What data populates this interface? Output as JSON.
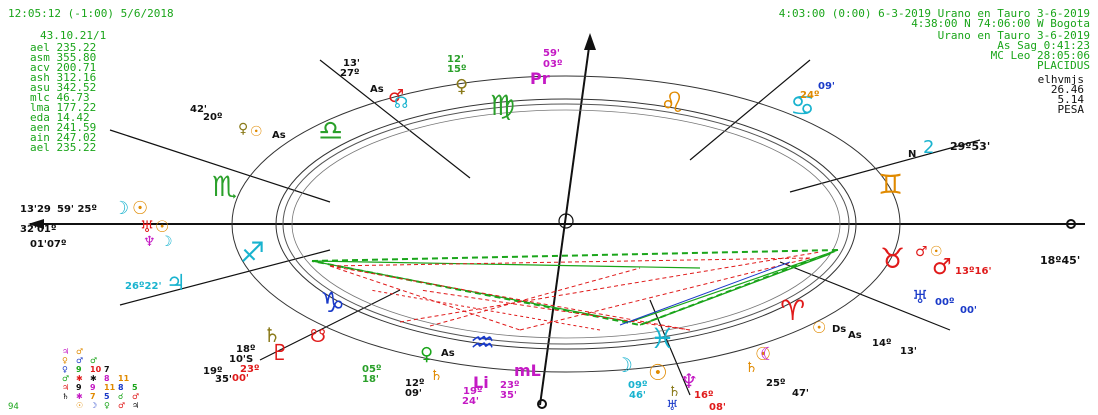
{
  "header": {
    "left_datetime": "12:05:12 (-1:00) 5/6/2018",
    "right_line1": "4:03:00 (0:00) 6-3-2019  Urano en Tauro 3-6-2019",
    "right_line2": "4:38:00 N  74:06:00 W  Bogota",
    "right_line3": "Urano en Tauro 3-6-2019",
    "right_line4": "As Sag  0:41:23",
    "right_line5": "MC Leo  28:05:06",
    "right_line6": "PLACIDUS",
    "right_line7": "elhvmjs",
    "right_line8": "26.46",
    "right_line9": "5.14",
    "right_line10": "PESA"
  },
  "left_panel": {
    "title": "43.10.21/1",
    "rows": [
      "ael  235.22",
      "asm  355.80",
      "acv  200.71",
      "ash  312.16",
      "asu  342.52",
      "mlc   46.73",
      "lma  177.22",
      "eda   14.42",
      "aen  241.59",
      "ain  247.02",
      "ael  235.22"
    ]
  },
  "footer": {
    "corner_number": "94"
  },
  "colors": {
    "green": "#1aa51a",
    "red": "#e01a1a",
    "blue": "#1a3ac8",
    "magenta": "#c41ac4",
    "orange": "#e08a00",
    "cyan": "#19b3cf",
    "navy": "#1a1a7a",
    "olive": "#8a7a1a"
  },
  "zodiac": [
    {
      "name": "Virgo",
      "glyph": "♍",
      "color": "#2aa02a"
    },
    {
      "name": "Leo",
      "glyph": "♌",
      "color": "#e08a00"
    },
    {
      "name": "Cancer",
      "glyph": "♋",
      "color": "#19b3cf"
    },
    {
      "name": "Gemini",
      "glyph": "♊",
      "color": "#e08a00"
    },
    {
      "name": "Taurus",
      "glyph": "♉",
      "color": "#e01a1a"
    },
    {
      "name": "Aries",
      "glyph": "♈",
      "color": "#e01a1a"
    },
    {
      "name": "Pisces",
      "glyph": "♓",
      "color": "#19b3cf"
    },
    {
      "name": "Aquarius",
      "glyph": "♒",
      "color": "#1a3ac8"
    },
    {
      "name": "Capricorn",
      "glyph": "♑",
      "color": "#1a3ac8"
    },
    {
      "name": "Sagittarius",
      "glyph": "♐",
      "color": "#19b3cf"
    },
    {
      "name": "Scorpio",
      "glyph": "♏",
      "color": "#2aa02a"
    },
    {
      "name": "Libra",
      "glyph": "♎",
      "color": "#2aa02a"
    }
  ],
  "planet_labels": [
    {
      "name": "pluto-top",
      "text": "Pr",
      "color": "#c41ac4"
    },
    {
      "name": "deg-top-1",
      "text": "59'",
      "color": "#c41ac4"
    },
    {
      "name": "deg-top-2",
      "text": "03º",
      "color": "#c41ac4"
    },
    {
      "name": "deg-top-3",
      "text": "12'",
      "color": "#2aa02a"
    },
    {
      "name": "deg-top-4",
      "text": "15º",
      "color": "#2aa02a"
    },
    {
      "name": "deg-tl-1",
      "text": "13'",
      "color": "#111111"
    },
    {
      "name": "deg-tl-2",
      "text": "27º",
      "color": "#111111"
    },
    {
      "name": "as-top",
      "text": "As",
      "color": "#111111"
    },
    {
      "name": "deg-left-1",
      "text": "42'",
      "color": "#111111"
    },
    {
      "name": "deg-left-2",
      "text": "20º",
      "color": "#111111"
    },
    {
      "name": "as-left",
      "text": "As",
      "color": "#111111"
    },
    {
      "name": "deg-w1",
      "text": "13'29",
      "color": "#111111"
    },
    {
      "name": "deg-w2",
      "text": "59' 25º",
      "color": "#111111"
    },
    {
      "name": "deg-w3",
      "text": "32'01º",
      "color": "#111111"
    },
    {
      "name": "deg-w4",
      "text": "01'07º",
      "color": "#111111"
    },
    {
      "name": "deg-jup",
      "text": "26º22'",
      "color": "#19b3cf"
    },
    {
      "name": "deg-tr1",
      "text": "09'",
      "color": "#1a3ac8"
    },
    {
      "name": "deg-tr2",
      "text": "24º",
      "color": "#e08a00"
    },
    {
      "name": "node-label",
      "text": "N",
      "color": "#111111"
    },
    {
      "name": "deg-tr3",
      "text": "29º53'",
      "color": "#111111"
    },
    {
      "name": "deg-r1",
      "text": "18º45'",
      "color": "#111111"
    },
    {
      "name": "deg-r2",
      "text": "13º16'",
      "color": "#e01a1a"
    },
    {
      "name": "deg-r3",
      "text": "00º",
      "color": "#1a3ac8"
    },
    {
      "name": "deg-r4",
      "text": "00'",
      "color": "#1a3ac8"
    },
    {
      "name": "ds-label",
      "text": "Ds",
      "color": "#111111"
    },
    {
      "name": "as-right",
      "text": "As",
      "color": "#111111"
    },
    {
      "name": "deg-r5",
      "text": "14º",
      "color": "#111111"
    },
    {
      "name": "deg-r6",
      "text": "13'",
      "color": "#111111"
    },
    {
      "name": "deg-b1",
      "text": "25º",
      "color": "#111111"
    },
    {
      "name": "deg-b2",
      "text": "47'",
      "color": "#111111"
    },
    {
      "name": "deg-b3",
      "text": "16º",
      "color": "#e01a1a"
    },
    {
      "name": "deg-b4",
      "text": "08'",
      "color": "#e01a1a"
    },
    {
      "name": "deg-b5",
      "text": "09º",
      "color": "#19b3cf"
    },
    {
      "name": "deg-b6",
      "text": "46'",
      "color": "#19b3cf"
    },
    {
      "name": "li-label",
      "text": "Li",
      "color": "#c41ac4"
    },
    {
      "name": "ml-label",
      "text": "mL",
      "color": "#c41ac4"
    },
    {
      "name": "deg-b7",
      "text": "23º",
      "color": "#c41ac4"
    },
    {
      "name": "deg-b8",
      "text": "35'",
      "color": "#c41ac4"
    },
    {
      "name": "deg-b9",
      "text": "19º",
      "color": "#c41ac4"
    },
    {
      "name": "deg-b10",
      "text": "24'",
      "color": "#c41ac4"
    },
    {
      "name": "deg-b11",
      "text": "12º",
      "color": "#111111"
    },
    {
      "name": "deg-b12",
      "text": "09'",
      "color": "#111111"
    },
    {
      "name": "deg-b13",
      "text": "05º",
      "color": "#2aa02a"
    },
    {
      "name": "deg-b14",
      "text": "18'",
      "color": "#2aa02a"
    },
    {
      "name": "as-bottom",
      "text": "As",
      "color": "#111111"
    },
    {
      "name": "deg-bl1",
      "text": "18º",
      "color": "#111111"
    },
    {
      "name": "deg-bl2",
      "text": "10'S",
      "color": "#111111"
    },
    {
      "name": "deg-bl3",
      "text": "19º",
      "color": "#111111"
    },
    {
      "name": "deg-bl4",
      "text": "35'",
      "color": "#111111"
    },
    {
      "name": "deg-bl5",
      "text": "23º",
      "color": "#e01a1a"
    },
    {
      "name": "deg-bl6",
      "text": "00'",
      "color": "#e01a1a"
    }
  ],
  "aspect_grid": {
    "rows": [
      [
        "♃",
        "♂",
        ""
      ],
      [
        "♀",
        "♂",
        "♂"
      ],
      [
        "♀",
        "9",
        "10",
        "7"
      ],
      [
        "♂",
        "✱",
        "✱",
        "8",
        "11"
      ],
      [
        "♃",
        "9",
        "9",
        "11",
        "8",
        "5"
      ],
      [
        "♄",
        "✱",
        "7",
        "5",
        "☌",
        "♂"
      ],
      [
        "",
        "☉",
        "☽",
        "♀",
        "♂",
        "♃"
      ]
    ]
  }
}
